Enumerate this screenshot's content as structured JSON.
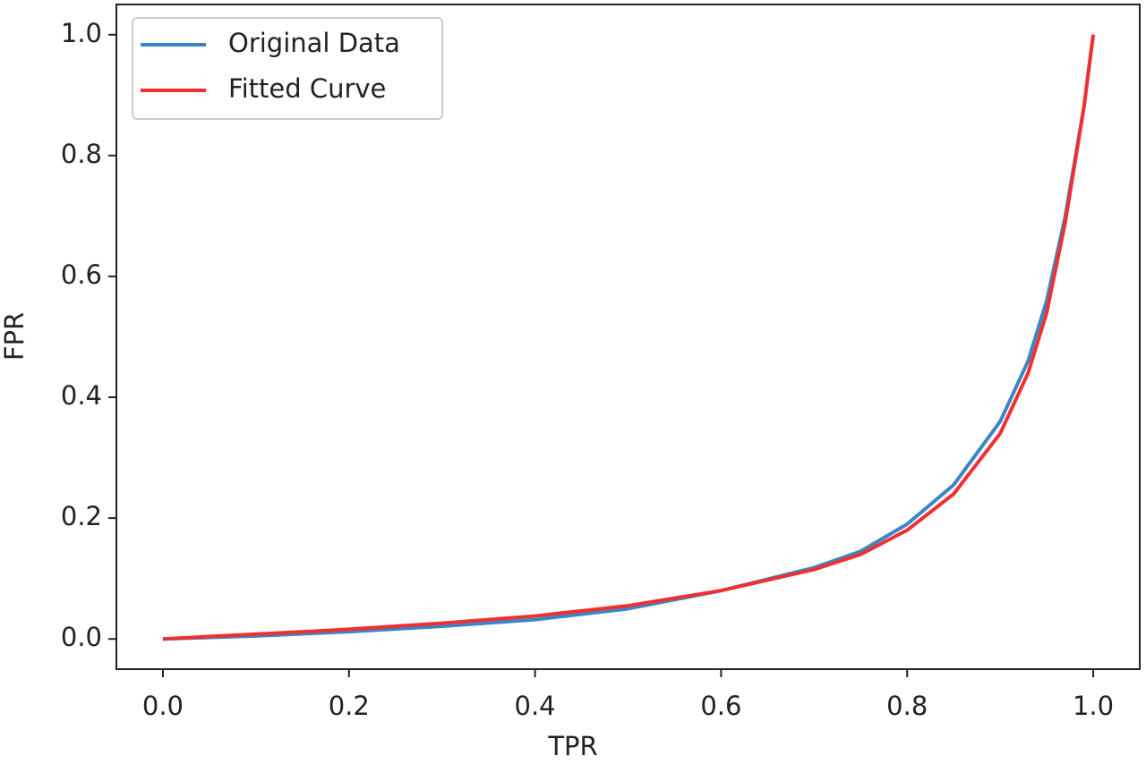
{
  "chart_data": {
    "type": "line",
    "xlabel": "TPR",
    "ylabel": "FPR",
    "x": [
      0,
      0.1,
      0.2,
      0.3,
      0.4,
      0.5,
      0.6,
      0.7,
      0.75,
      0.8,
      0.85,
      0.9,
      0.93,
      0.95,
      0.97,
      0.99,
      1.0
    ],
    "series": [
      {
        "name": "Original Data",
        "color": "#3a86c6",
        "values": [
          0,
          0.005,
          0.012,
          0.021,
          0.032,
          0.05,
          0.08,
          0.118,
          0.145,
          0.19,
          0.255,
          0.36,
          0.46,
          0.56,
          0.7,
          0.88,
          1.0
        ]
      },
      {
        "name": "Fitted Curve",
        "color": "#f03030",
        "values": [
          0,
          0.008,
          0.016,
          0.026,
          0.038,
          0.055,
          0.08,
          0.115,
          0.14,
          0.18,
          0.24,
          0.34,
          0.44,
          0.54,
          0.69,
          0.88,
          1.0
        ]
      }
    ],
    "xlim": [
      -0.05,
      1.05
    ],
    "ylim": [
      -0.05,
      1.05
    ],
    "xticks": [
      {
        "value": 0,
        "label": "0.0"
      },
      0.2,
      0.4,
      0.6,
      0.8,
      {
        "value": 1,
        "label": "1.0"
      }
    ],
    "yticks": [
      {
        "value": 0,
        "label": "0.0"
      },
      0.2,
      0.4,
      0.6,
      0.8,
      {
        "value": 1,
        "label": "1.0"
      }
    ],
    "grid": false,
    "legend": "upper left"
  }
}
